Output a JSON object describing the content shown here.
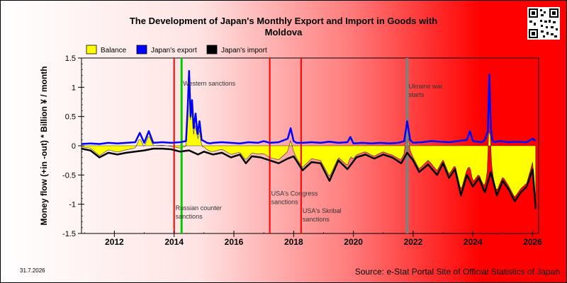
{
  "header": {
    "title_line1": "The Development of Japan's Monthly Export and Import in Goods with",
    "title_line2": "Moldova"
  },
  "footer": {
    "date": "31.7.2026",
    "source": "Source: e-Stat Portal Site of Official Statistics of Japan"
  },
  "colors": {
    "balance": "#ffff00",
    "export": "#0000ff",
    "import": "#000000",
    "western_sanctions": "#00cc00",
    "event_red": "#ff0000",
    "ukraine_war": "#808080"
  },
  "chart_data": {
    "type": "line",
    "title": "The Development of Japan's Monthly Export and Import in Goods with Moldova",
    "ylabel": "Money flow (+in -out) * Billion ¥ / month",
    "xlabel": "",
    "ylim": [
      -1.5,
      1.5
    ],
    "xlim": [
      2010.9,
      2026.2
    ],
    "yticks": [
      "1.5",
      "1",
      "0.5",
      "0",
      "-0.5",
      "-1",
      "-1.5"
    ],
    "xticks": [
      "2012",
      "2014",
      "2016",
      "2018",
      "2020",
      "2022",
      "2024",
      "2026"
    ],
    "legend": [
      "Balance",
      "Japan's export",
      "Japan's import"
    ],
    "legend_position": "top",
    "events": [
      {
        "label": "Western sanctions",
        "x": 2014.25,
        "color": "green",
        "label_y": 1.03
      },
      {
        "label": "Russian counter sanctions",
        "x": 2014.0,
        "color": "red",
        "label_y": -1.1
      },
      {
        "label": "USA's Congress sanctions",
        "x": 2017.2,
        "color": "red",
        "label_y": -0.85
      },
      {
        "label": "USA's Skribal sanctions",
        "x": 2018.25,
        "color": "red",
        "label_y": -1.15
      },
      {
        "label": "Ukraine war starts",
        "x": 2021.8,
        "color": "gray",
        "label_y": 0.98
      }
    ],
    "series": [
      {
        "name": "Japan's export",
        "x": [
          2010.9,
          2011.2,
          2011.5,
          2011.8,
          2012.1,
          2012.4,
          2012.7,
          2012.85,
          2013.0,
          2013.15,
          2013.3,
          2013.6,
          2013.9,
          2014.2,
          2014.4,
          2014.45,
          2014.5,
          2014.55,
          2014.6,
          2014.65,
          2014.72,
          2014.78,
          2014.85,
          2014.92,
          2015.0,
          2015.1,
          2015.2,
          2015.3,
          2015.6,
          2015.9,
          2016.2,
          2016.5,
          2016.8,
          2017.0,
          2017.2,
          2017.5,
          2017.8,
          2017.9,
          2018.0,
          2018.1,
          2018.3,
          2018.6,
          2018.9,
          2019.2,
          2019.5,
          2019.8,
          2019.9,
          2020.0,
          2020.3,
          2020.6,
          2020.9,
          2021.2,
          2021.5,
          2021.7,
          2021.8,
          2021.9,
          2022.0,
          2022.3,
          2022.6,
          2022.9,
          2023.2,
          2023.5,
          2023.8,
          2023.9,
          2024.0,
          2024.3,
          2024.4,
          2024.5,
          2024.55,
          2024.6,
          2024.65,
          2024.7,
          2024.9,
          2025.2,
          2025.5,
          2025.8,
          2026.0,
          2026.1
        ],
        "values": [
          0.03,
          0.04,
          0.03,
          0.05,
          0.04,
          0.05,
          0.06,
          0.22,
          0.05,
          0.25,
          0.05,
          0.06,
          0.05,
          0.06,
          0.08,
          0.6,
          1.28,
          0.5,
          0.78,
          0.3,
          0.55,
          0.2,
          0.42,
          0.1,
          0.08,
          0.05,
          0.04,
          0.05,
          0.06,
          0.05,
          0.04,
          0.06,
          0.05,
          0.08,
          0.05,
          0.06,
          0.12,
          0.3,
          0.08,
          0.05,
          0.05,
          0.06,
          0.05,
          0.07,
          0.05,
          0.06,
          0.15,
          0.04,
          0.05,
          0.04,
          0.05,
          0.04,
          0.05,
          0.08,
          0.42,
          0.1,
          0.05,
          0.06,
          0.08,
          0.07,
          0.06,
          0.08,
          0.1,
          0.25,
          0.08,
          0.06,
          0.1,
          0.25,
          1.22,
          0.3,
          0.1,
          0.06,
          0.08,
          0.06,
          0.07,
          0.06,
          0.12,
          0.08
        ]
      },
      {
        "name": "Japan's import",
        "x": [
          2010.9,
          2011.2,
          2011.5,
          2011.8,
          2012.1,
          2012.4,
          2012.7,
          2013.0,
          2013.3,
          2013.6,
          2013.9,
          2014.2,
          2014.5,
          2014.8,
          2015.0,
          2015.3,
          2015.6,
          2015.9,
          2016.2,
          2016.4,
          2016.6,
          2016.9,
          2017.2,
          2017.5,
          2017.8,
          2018.0,
          2018.3,
          2018.6,
          2018.9,
          2019.2,
          2019.5,
          2019.8,
          2020.1,
          2020.4,
          2020.7,
          2021.0,
          2021.3,
          2021.6,
          2021.8,
          2022.0,
          2022.2,
          2022.5,
          2022.8,
          2023.0,
          2023.2,
          2023.4,
          2023.6,
          2023.8,
          2024.0,
          2024.2,
          2024.4,
          2024.6,
          2024.8,
          2025.0,
          2025.2,
          2025.4,
          2025.6,
          2025.8,
          2025.9,
          2026.0,
          2026.1
        ],
        "values": [
          -0.05,
          -0.08,
          -0.2,
          -0.12,
          -0.15,
          -0.12,
          -0.1,
          -0.08,
          -0.05,
          -0.05,
          -0.06,
          -0.1,
          -0.08,
          -0.15,
          -0.1,
          -0.15,
          -0.12,
          -0.2,
          -0.15,
          -0.3,
          -0.18,
          -0.2,
          -0.25,
          -0.3,
          -0.22,
          -0.18,
          -0.42,
          -0.28,
          -0.3,
          -0.6,
          -0.25,
          -0.4,
          -0.2,
          -0.15,
          -0.22,
          -0.15,
          -0.2,
          -0.3,
          -0.12,
          -0.25,
          -0.45,
          -0.32,
          -0.5,
          -0.3,
          -0.55,
          -0.4,
          -0.85,
          -0.5,
          -0.7,
          -0.55,
          -0.8,
          -0.45,
          -0.85,
          -0.6,
          -0.75,
          -0.95,
          -0.8,
          -0.7,
          -0.55,
          -0.4,
          -1.08
        ]
      }
    ]
  }
}
